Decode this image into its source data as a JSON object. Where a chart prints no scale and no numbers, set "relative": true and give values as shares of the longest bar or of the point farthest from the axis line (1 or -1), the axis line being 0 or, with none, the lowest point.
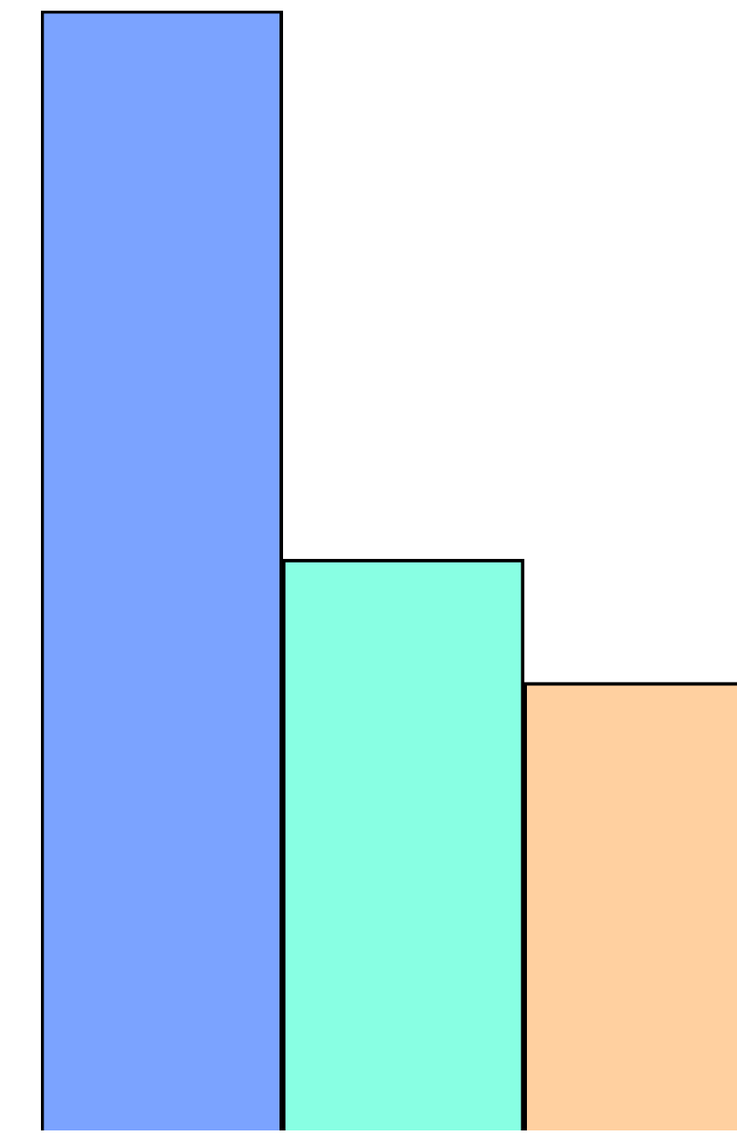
{
  "chart_data": {
    "type": "bar",
    "relative": true,
    "categories": [
      null,
      null,
      null
    ],
    "values": [
      1,
      0.51,
      0.4
    ],
    "colors": [
      "#7ba3ff",
      "#88ffe3",
      "#ffd0a0"
    ]
  }
}
